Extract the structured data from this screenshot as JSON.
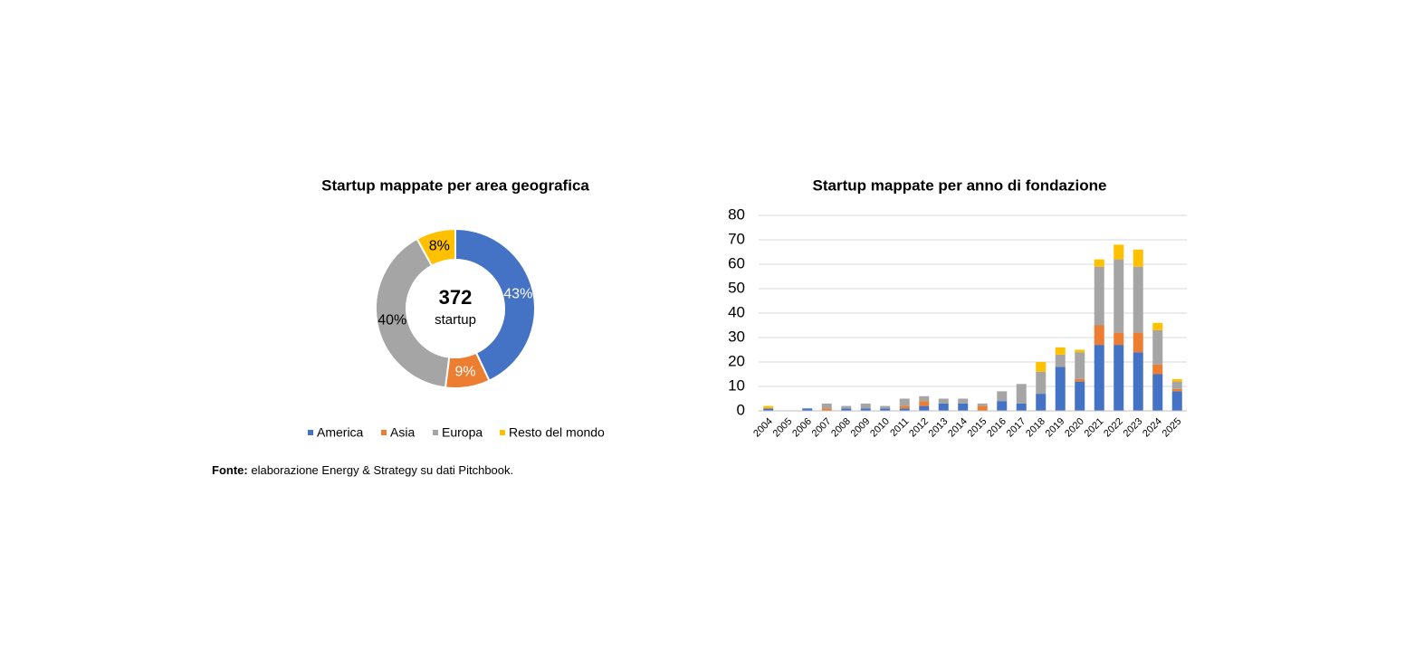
{
  "chart_data": [
    {
      "type": "donut",
      "title": "Startup mappate per area geografica",
      "total": 372,
      "total_caption": "startup",
      "categories": [
        "America",
        "Asia",
        "Europa",
        "Resto del mondo"
      ],
      "values": [
        43,
        9,
        40,
        8
      ],
      "value_labels": [
        "43%",
        "9%",
        "40%",
        "8%"
      ],
      "colors": [
        "#4472c4",
        "#ed7d31",
        "#a5a5a5",
        "#ffc000"
      ],
      "legend": "bottom"
    },
    {
      "type": "stacked-bar",
      "title": "Startup mappate per anno di fondazione",
      "categories": [
        "2004",
        "2005",
        "2006",
        "2007",
        "2008",
        "2009",
        "2010",
        "2011",
        "2012",
        "2013",
        "2014",
        "2015",
        "2016",
        "2017",
        "2018",
        "2019",
        "2020",
        "2021",
        "2022",
        "2023",
        "2024",
        "2025"
      ],
      "series": [
        {
          "color": "#4472c4",
          "values": [
            1,
            0,
            1,
            0,
            1,
            1,
            1,
            1,
            2,
            3,
            3,
            0,
            4,
            3,
            7,
            18,
            12,
            27,
            27,
            24,
            15,
            8
          ]
        },
        {
          "color": "#ed7d31",
          "values": [
            0,
            0,
            0,
            1,
            0,
            0,
            0,
            1,
            2,
            0,
            0,
            2,
            0,
            0,
            0,
            0,
            1,
            8,
            5,
            8,
            4,
            1
          ]
        },
        {
          "color": "#a5a5a5",
          "values": [
            0,
            0,
            0,
            2,
            1,
            2,
            1,
            3,
            2,
            2,
            2,
            1,
            4,
            8,
            9,
            5,
            11,
            24,
            30,
            27,
            14,
            3
          ]
        },
        {
          "color": "#ffc000",
          "values": [
            1,
            0,
            0,
            0,
            0,
            0,
            0,
            0,
            0,
            0,
            0,
            0,
            0,
            0,
            4,
            3,
            1,
            3,
            6,
            7,
            3,
            1
          ]
        }
      ],
      "ylim": [
        0,
        80
      ],
      "yticks": [
        0,
        10,
        20,
        30,
        40,
        50,
        60,
        70,
        80
      ],
      "grid": true
    }
  ],
  "source": {
    "label": "Fonte:",
    "text": "elaborazione Energy & Strategy su dati Pitchbook."
  }
}
